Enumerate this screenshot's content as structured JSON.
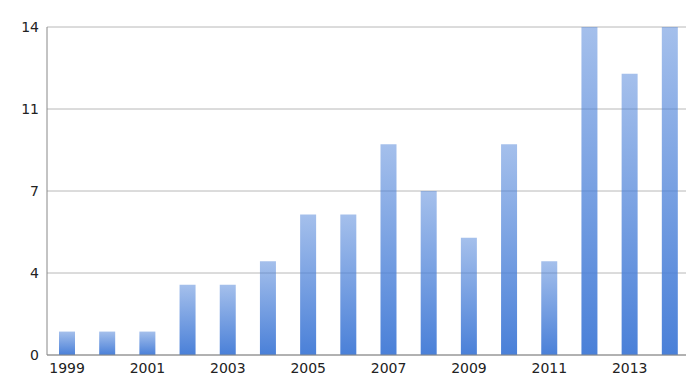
{
  "chart_data": {
    "type": "bar",
    "categories": [
      "1999",
      null,
      "2001",
      null,
      "2003",
      null,
      "2005",
      null,
      "2007",
      null,
      "2009",
      null,
      "2011",
      null,
      "2013",
      null
    ],
    "values": [
      1,
      1,
      1,
      3,
      3,
      4,
      6,
      6,
      9,
      7,
      5,
      9,
      4,
      14,
      12,
      14
    ],
    "color": "#4a80d8",
    "ylim": [
      0,
      14
    ],
    "yticks": [
      0,
      {
        "value": 3.5,
        "label": "4"
      },
      7,
      {
        "value": 10.5,
        "label": "11"
      },
      14
    ],
    "grid": true
  }
}
